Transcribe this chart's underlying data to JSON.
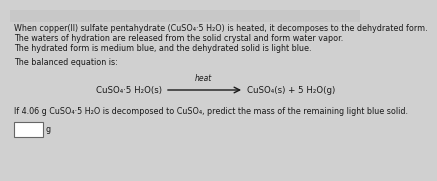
{
  "bg_color": "#d0d0d0",
  "text_color": "#1a1a1a",
  "line1": "When copper(II) sulfate pentahydrate (CuSO₄·5 H₂O) is heated, it decomposes to the dehydrated form.",
  "line2": "The waters of hydration are released from the solid crystal and form water vapor.",
  "line3": "The hydrated form is medium blue, and the dehydrated solid is light blue.",
  "balanced_label": "The balanced equation is:",
  "reactant": "CuSO₄·5 H₂O(s)",
  "arrow_label": "heat",
  "product": "CuSO₄(s) + 5 H₂O(g)",
  "question": "If 4.06 g CuSO₄·5 H₂O is decomposed to CuSO₄, predict the mass of the remaining light blue solid.",
  "unit": "g",
  "fontsize_body": 5.8,
  "fontsize_eq": 6.2,
  "fontsize_heat": 5.5
}
